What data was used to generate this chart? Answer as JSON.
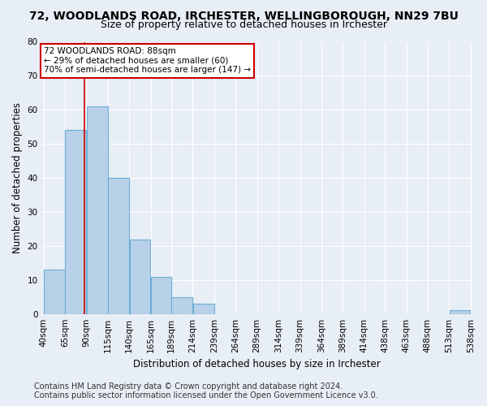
{
  "title": "72, WOODLANDS ROAD, IRCHESTER, WELLINGBOROUGH, NN29 7BU",
  "subtitle": "Size of property relative to detached houses in Irchester",
  "xlabel": "Distribution of detached houses by size in Irchester",
  "ylabel": "Number of detached properties",
  "bin_edges": [
    40,
    65,
    90,
    115,
    140,
    165,
    189,
    214,
    239,
    264,
    289,
    314,
    339,
    364,
    389,
    414,
    438,
    463,
    488,
    513,
    538
  ],
  "bar_heights": [
    13,
    54,
    61,
    40,
    22,
    11,
    5,
    3,
    0,
    0,
    0,
    0,
    0,
    0,
    0,
    0,
    0,
    0,
    0,
    1
  ],
  "bar_color": "#b8d0e8",
  "bar_edge_color": "#6baed6",
  "ylim": [
    0,
    80
  ],
  "yticks": [
    0,
    10,
    20,
    30,
    40,
    50,
    60,
    70,
    80
  ],
  "x_labels": [
    "40sqm",
    "65sqm",
    "90sqm",
    "115sqm",
    "140sqm",
    "165sqm",
    "189sqm",
    "214sqm",
    "239sqm",
    "264sqm",
    "289sqm",
    "314sqm",
    "339sqm",
    "364sqm",
    "389sqm",
    "414sqm",
    "438sqm",
    "463sqm",
    "488sqm",
    "513sqm",
    "538sqm"
  ],
  "ref_line_x": 88,
  "ref_line_color": "#cc0000",
  "annotation_line1": "72 WOODLANDS ROAD: 88sqm",
  "annotation_line2": "← 29% of detached houses are smaller (60)",
  "annotation_line3": "70% of semi-detached houses are larger (147) →",
  "annotation_box_color": "#cc0000",
  "footer_line1": "Contains HM Land Registry data © Crown copyright and database right 2024.",
  "footer_line2": "Contains public sector information licensed under the Open Government Licence v3.0.",
  "bg_color": "#e8eef5",
  "plot_bg_color": "#e8eef5",
  "grid_color": "#ffffff",
  "title_fontsize": 10,
  "subtitle_fontsize": 9,
  "label_fontsize": 8.5,
  "tick_fontsize": 7.5,
  "footer_fontsize": 7
}
